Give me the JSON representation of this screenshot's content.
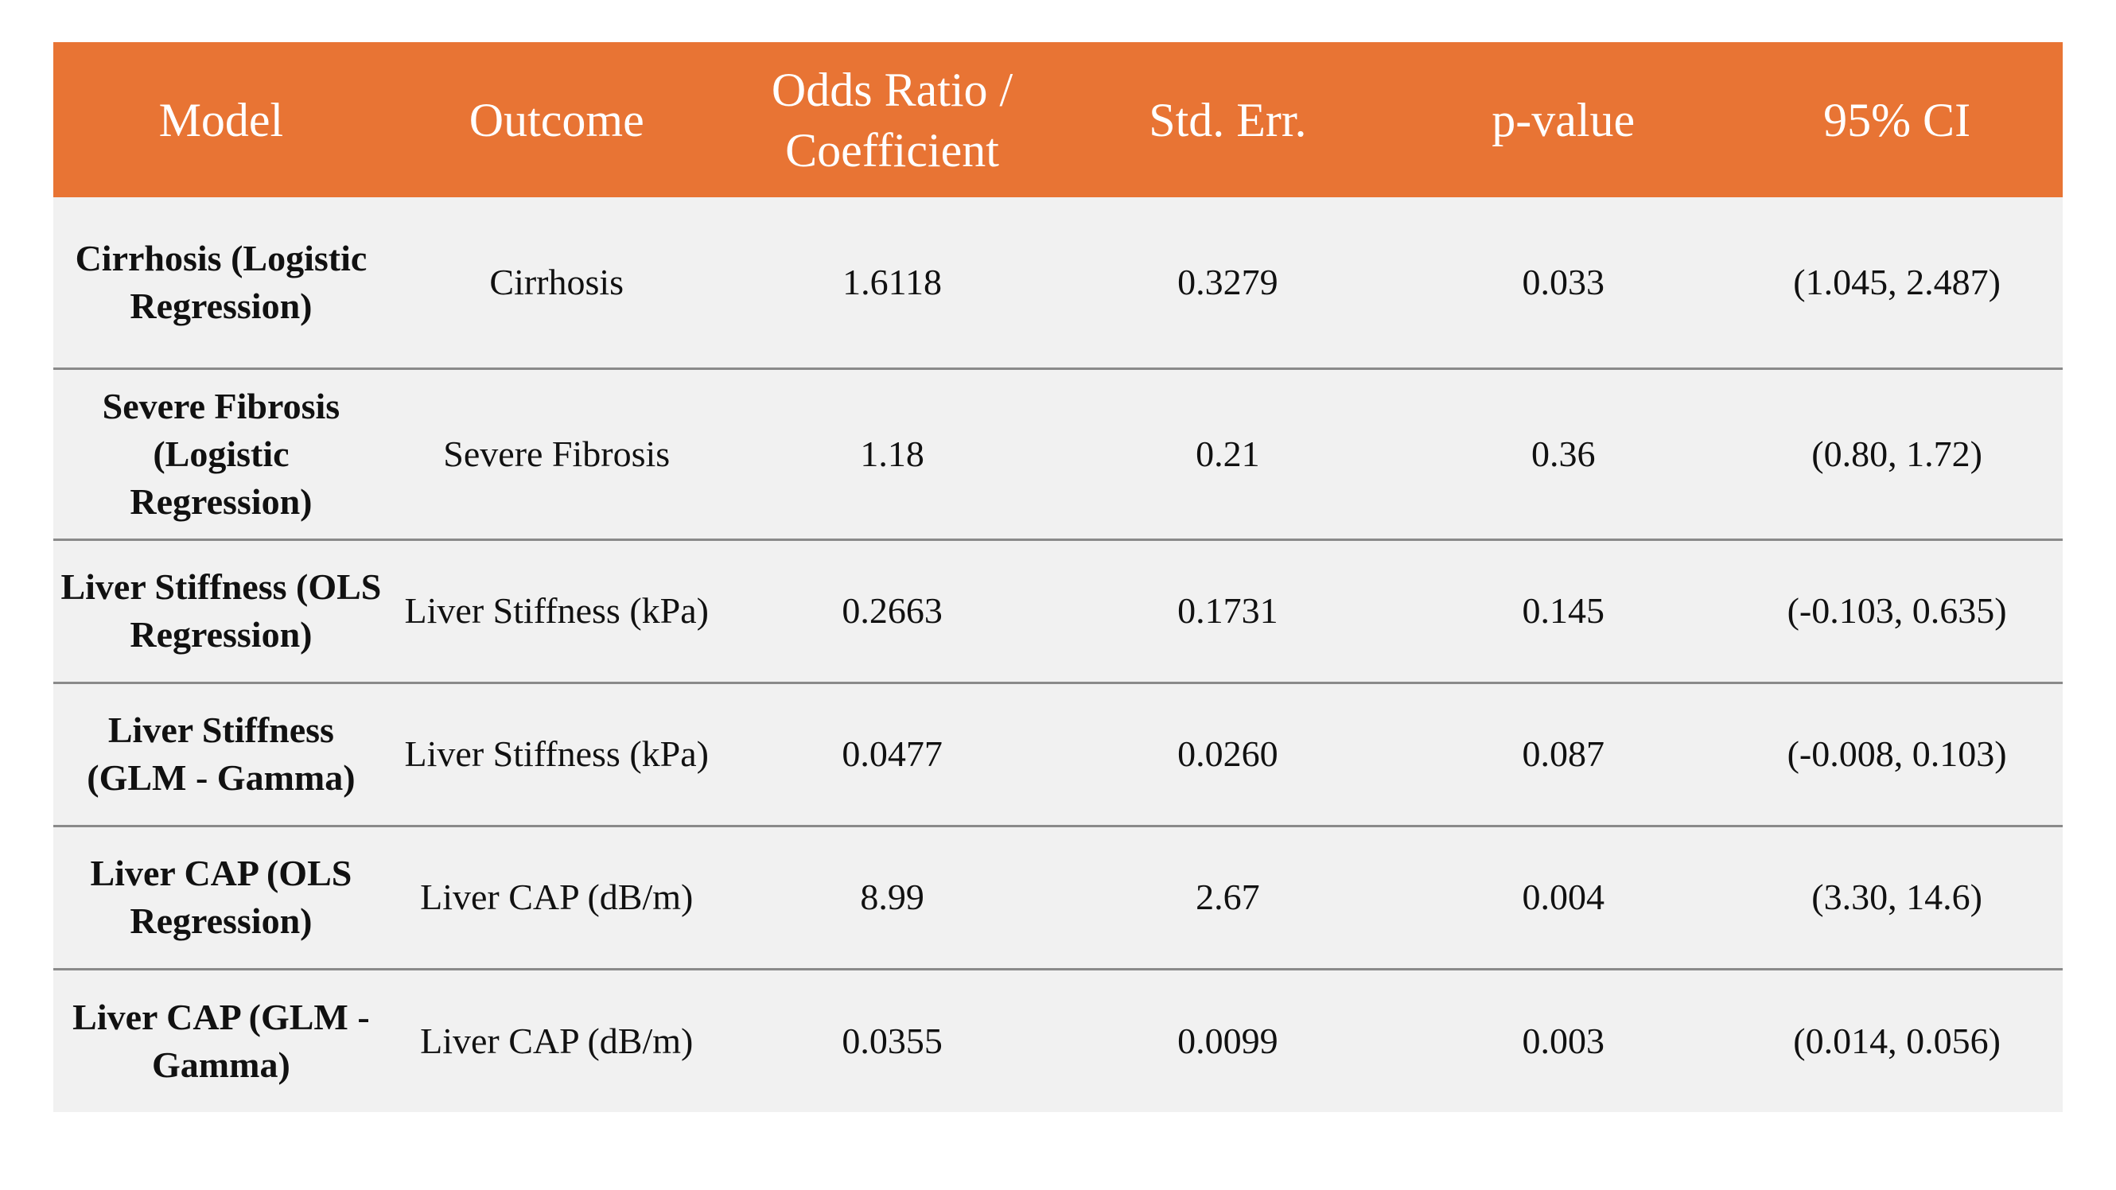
{
  "table": {
    "columns": [
      "Model",
      "Outcome",
      "Odds Ratio / Coefficient",
      "Std. Err.",
      "p-value",
      "95% CI"
    ],
    "rows": [
      {
        "model": "Cirrhosis (Logistic Regression)",
        "outcome": "Cirrhosis",
        "estimate": "1.6118",
        "std_err": "0.3279",
        "p_value": "0.033",
        "ci": "(1.045, 2.487)"
      },
      {
        "model": "Severe Fibrosis (Logistic Regression)",
        "outcome": "Severe Fibrosis",
        "estimate": "1.18",
        "std_err": "0.21",
        "p_value": "0.36",
        "ci": "(0.80, 1.72)"
      },
      {
        "model": "Liver Stiffness (OLS Regression)",
        "outcome": "Liver Stiffness (kPa)",
        "estimate": "0.2663",
        "std_err": "0.1731",
        "p_value": "0.145",
        "ci": "(-0.103, 0.635)"
      },
      {
        "model": "Liver Stiffness (GLM - Gamma)",
        "outcome": "Liver Stiffness (kPa)",
        "estimate": "0.0477",
        "std_err": "0.0260",
        "p_value": "0.087",
        "ci": "(-0.008, 0.103)"
      },
      {
        "model": "Liver CAP (OLS Regression)",
        "outcome": "Liver CAP (dB/m)",
        "estimate": "8.99",
        "std_err": "2.67",
        "p_value": "0.004",
        "ci": "(3.30, 14.6)"
      },
      {
        "model": "Liver CAP (GLM - Gamma)",
        "outcome": "Liver CAP (dB/m)",
        "estimate": "0.0355",
        "std_err": "0.0099",
        "p_value": "0.003",
        "ci": "(0.014, 0.056)"
      }
    ]
  },
  "colors": {
    "header_bg": "#e87434",
    "header_text": "#ffffff",
    "row_bg": "#f1f1f1",
    "row_divider": "#8a8a8a"
  }
}
